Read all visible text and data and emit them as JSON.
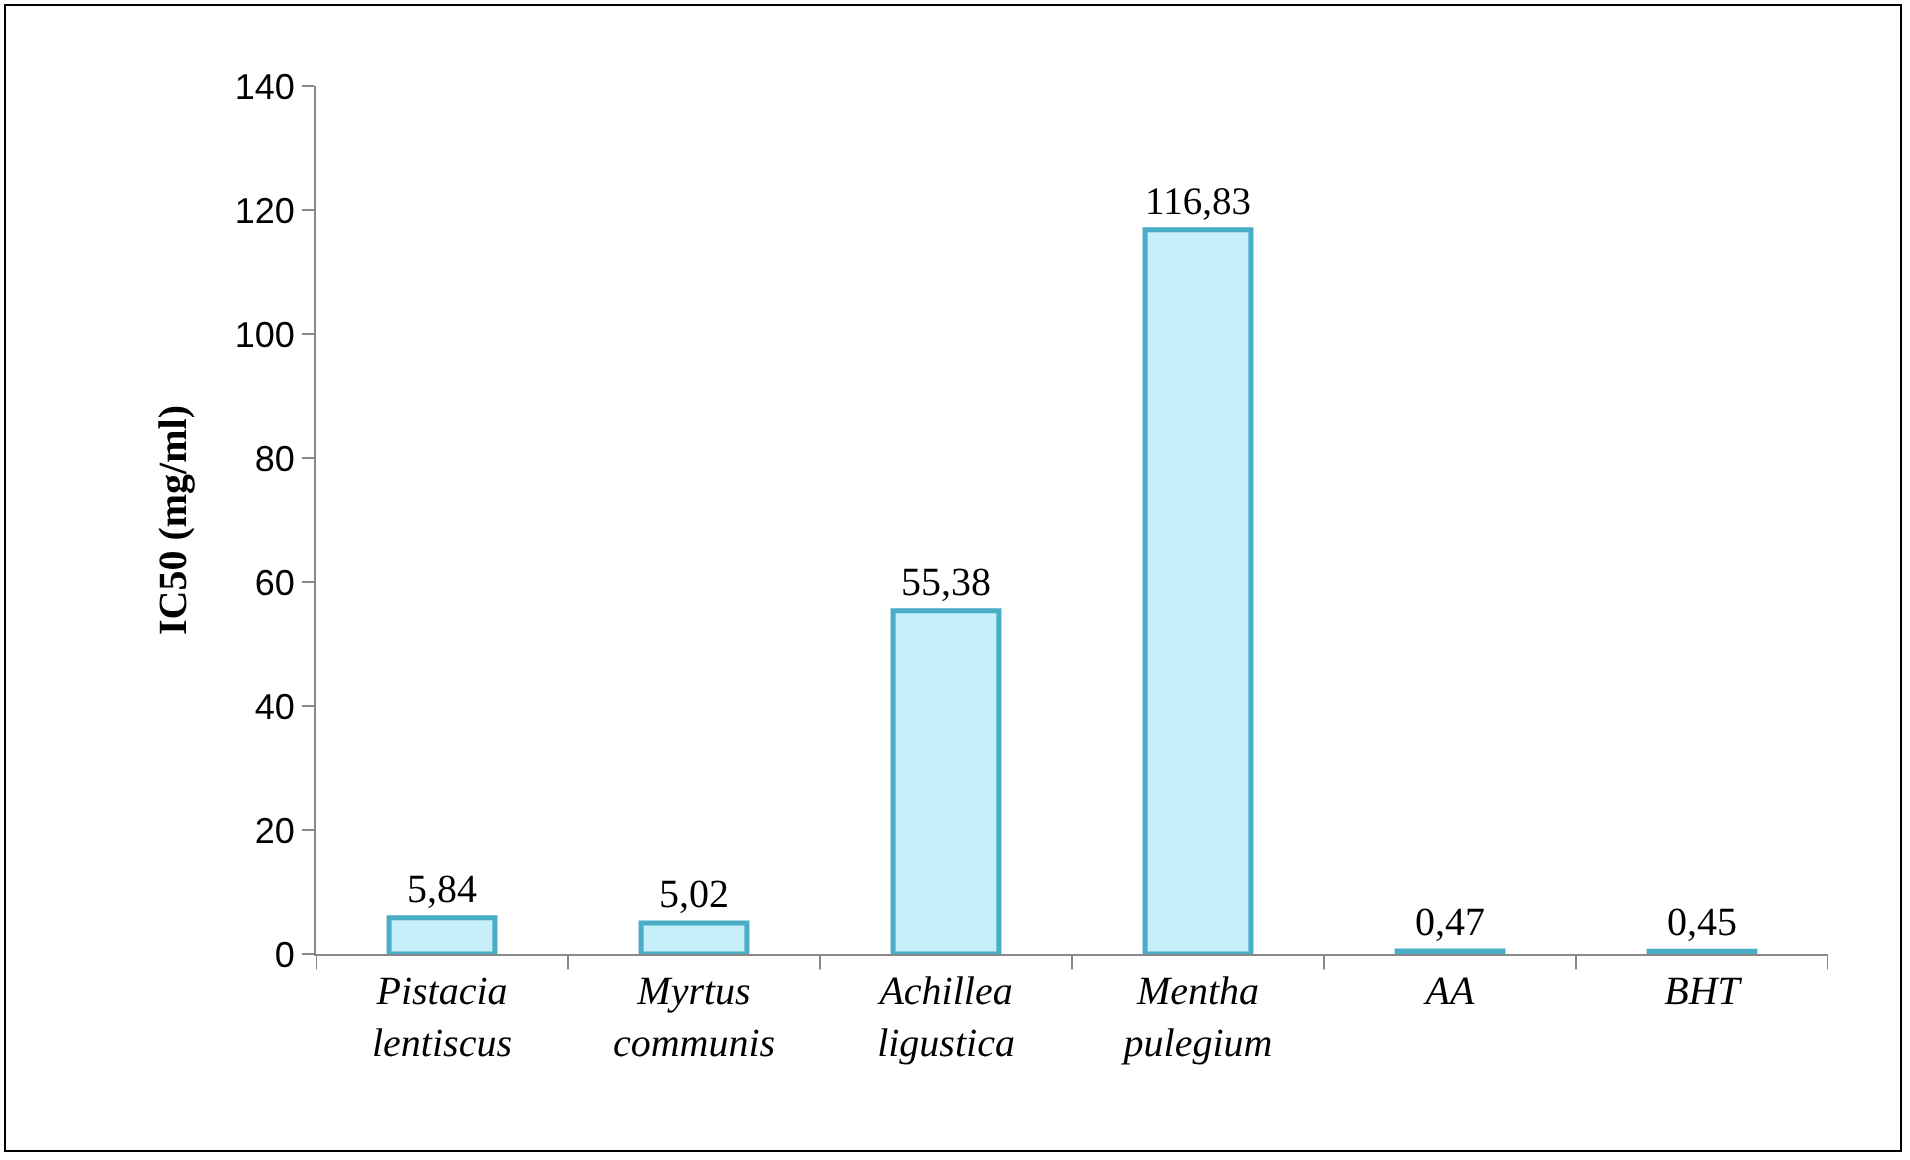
{
  "chart_data": {
    "type": "bar",
    "ylabel": "IC50 (mg/ml)",
    "categories": [
      "Pistacia lentiscus",
      "Myrtus communis",
      "Achillea ligustica",
      "Mentha pulegium",
      "AA",
      "BHT"
    ],
    "values": [
      5.84,
      5.02,
      55.38,
      116.83,
      0.47,
      0.45
    ],
    "value_labels": [
      "5,84",
      "5,02",
      "55,38",
      "116,83",
      "0,47",
      "0,45"
    ],
    "color": "#c6effa",
    "ylim": [
      0,
      140
    ],
    "yticks": [
      0,
      20,
      40,
      60,
      80,
      100,
      120,
      140
    ],
    "grid": false
  }
}
